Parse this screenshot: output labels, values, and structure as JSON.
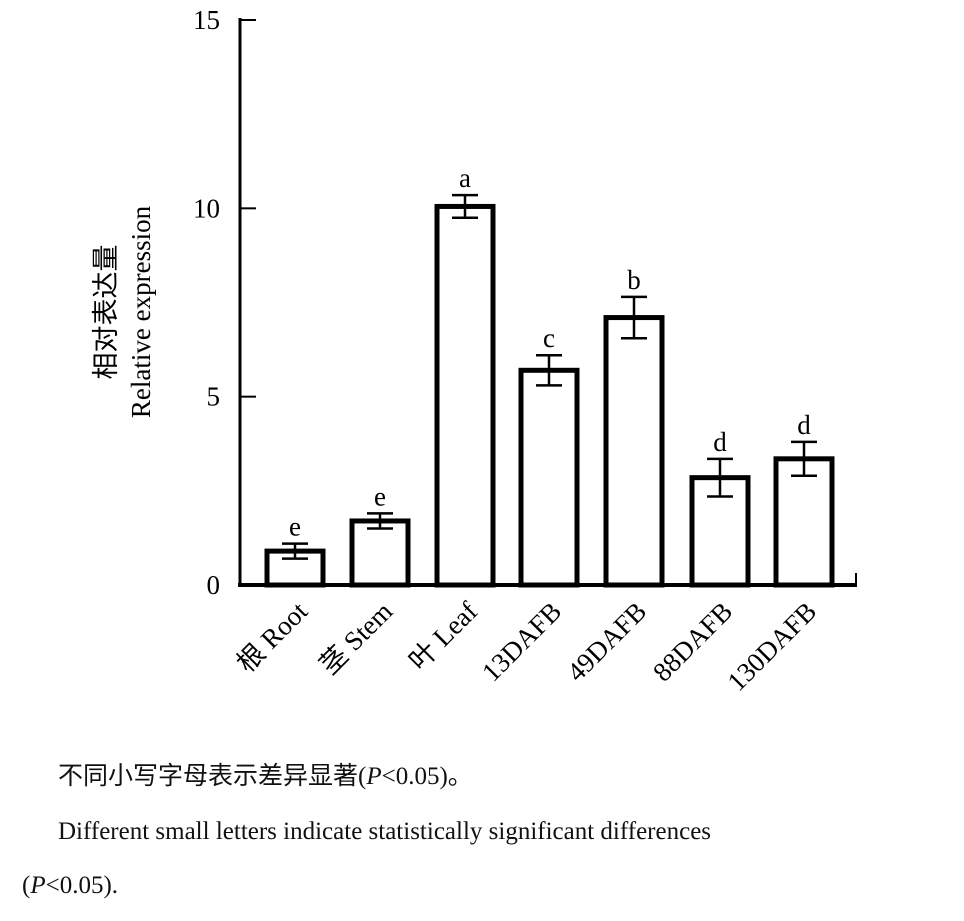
{
  "chart_data": {
    "type": "bar",
    "ylabel_cn": "相对表达量",
    "ylabel": "Relative expression",
    "ylim": [
      0,
      15
    ],
    "yticks": [
      0,
      5,
      10,
      15
    ],
    "categories": [
      "根 Root",
      "茎 Stem",
      "叶 Leaf",
      "13DAFB",
      "49DAFB",
      "88DAFB",
      "130DAFB"
    ],
    "values": [
      0.9,
      1.7,
      10.05,
      5.7,
      7.1,
      2.85,
      3.35
    ],
    "errors": [
      0.2,
      0.2,
      0.3,
      0.4,
      0.55,
      0.5,
      0.45
    ],
    "significance_letters": [
      "e",
      "e",
      "a",
      "c",
      "b",
      "d",
      "d"
    ],
    "bar_fill": "#ffffff",
    "bar_stroke": "#000000",
    "grid": false
  },
  "caption": {
    "cn": "不同小写字母表示差异显著(P<0.05)。",
    "cn_pre": "不同小写字母表示差异显著(",
    "cn_p": "P",
    "cn_post": "<0.05)。",
    "en_line1": "Different small letters indicate statistically significant differences",
    "en_line2_pre": "(",
    "en_line2_p": "P",
    "en_line2_post": "<0.05)."
  }
}
